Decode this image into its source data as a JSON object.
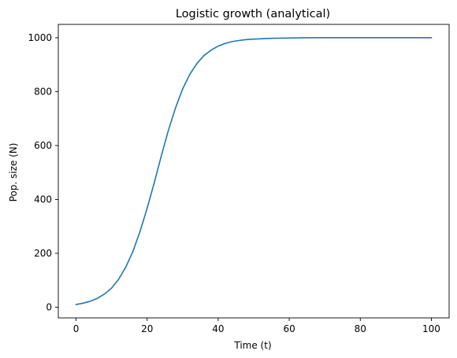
{
  "chart_data": {
    "type": "line",
    "title": "Logistic growth (analytical)",
    "xlabel": "Time (t)",
    "ylabel": "Pop. size (N)",
    "xlim": [
      -5,
      105
    ],
    "ylim": [
      -39.5,
      1049.5
    ],
    "xticks": [
      0,
      20,
      40,
      60,
      80,
      100
    ],
    "yticks": [
      0,
      200,
      400,
      600,
      800,
      1000
    ],
    "grid": false,
    "series": [
      {
        "color": "#1f77b4",
        "x": [
          0,
          2,
          4,
          6,
          8,
          10,
          12,
          14,
          16,
          18,
          20,
          22,
          24,
          26,
          28,
          30,
          32,
          34,
          36,
          38,
          40,
          42,
          44,
          46,
          48,
          50,
          55,
          60,
          65,
          70,
          80,
          90,
          100
        ],
        "y": [
          10,
          15,
          22,
          33,
          49,
          71,
          104,
          149,
          207,
          281,
          367,
          462,
          562,
          657,
          740,
          810,
          864,
          904,
          934,
          954,
          969,
          979,
          986,
          990,
          993,
          995,
          998,
          999,
          1000,
          1000,
          1000,
          1000,
          1000
        ]
      }
    ]
  }
}
